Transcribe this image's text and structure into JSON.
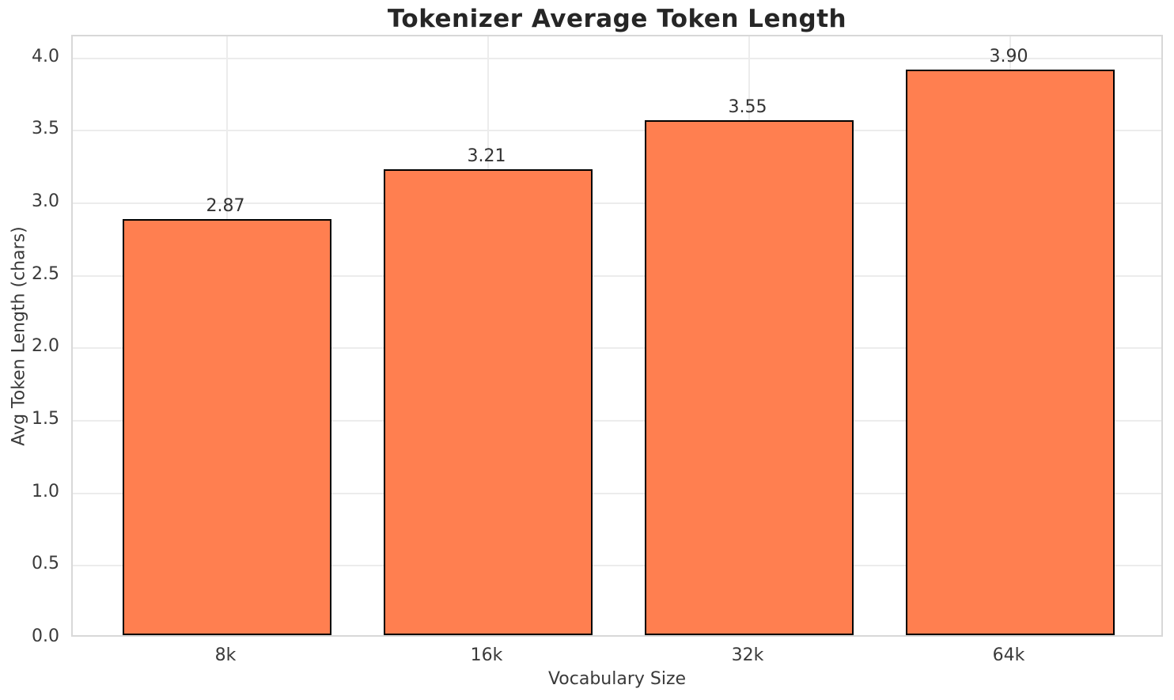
{
  "chart_data": {
    "type": "bar",
    "title": "Tokenizer Average Token Length",
    "xlabel": "Vocabulary Size",
    "ylabel": "Avg Token Length (chars)",
    "categories": [
      "8k",
      "16k",
      "32k",
      "64k"
    ],
    "values": [
      2.87,
      3.21,
      3.55,
      3.9
    ],
    "value_labels": [
      "2.87",
      "3.21",
      "3.55",
      "3.90"
    ],
    "yticks": [
      0.0,
      0.5,
      1.0,
      1.5,
      2.0,
      2.5,
      3.0,
      3.5,
      4.0
    ],
    "ytick_labels": [
      "0.0",
      "0.5",
      "1.0",
      "1.5",
      "2.0",
      "2.5",
      "3.0",
      "3.5",
      "4.0"
    ],
    "ylim": [
      0,
      4.15
    ],
    "grid": true,
    "legend_position": "none",
    "bar_color": "#FF7F50",
    "bar_edge_color": "#000000",
    "grid_color": "#ececec",
    "title_color": "#262626",
    "tick_color": "#3a3a3a"
  }
}
